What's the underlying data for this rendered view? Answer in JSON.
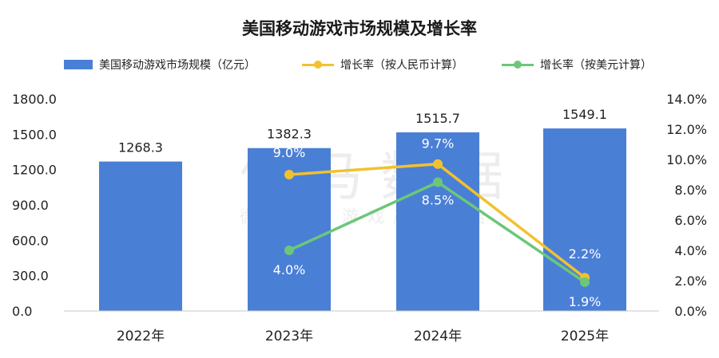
{
  "chart_data": {
    "type": "bar",
    "title": "美国移动游戏市场规模及增长率",
    "categories": [
      "2022年",
      "2023年",
      "2024年",
      "2025年"
    ],
    "series": [
      {
        "name": "美国移动游戏市场规模（亿元）",
        "type": "bar",
        "axis": "left",
        "color": "#4a7fd6",
        "values": [
          1268.3,
          1382.3,
          1515.7,
          1549.1
        ],
        "labels": [
          "1268.3",
          "1382.3",
          "1515.7",
          "1549.1"
        ]
      },
      {
        "name": "增长率（按人民币计算）",
        "type": "line",
        "axis": "right",
        "color": "#f2c12e",
        "values": [
          null,
          9.0,
          9.7,
          2.2
        ],
        "labels": [
          "",
          "9.0%",
          "9.7%",
          "2.2%"
        ]
      },
      {
        "name": "增长率（按美元计算）",
        "type": "line",
        "axis": "right",
        "color": "#6cc77a",
        "values": [
          null,
          4.0,
          8.5,
          1.9
        ],
        "labels": [
          "",
          "4.0%",
          "8.5%",
          "1.9%"
        ]
      }
    ],
    "y_left": {
      "ylim": [
        0,
        1800
      ],
      "ticks": [
        "0.0",
        "300.0",
        "600.0",
        "900.0",
        "1200.0",
        "1500.0",
        "1800.0"
      ]
    },
    "y_right": {
      "ylim": [
        0,
        14
      ],
      "ticks": [
        "0.0%",
        "2.0%",
        "4.0%",
        "6.0%",
        "8.0%",
        "10.0%",
        "12.0%",
        "14.0%"
      ]
    },
    "grid": false,
    "legend": "top"
  },
  "watermark": {
    "main": "伽马数据",
    "sub": "微信号：游戏产业报告"
  }
}
